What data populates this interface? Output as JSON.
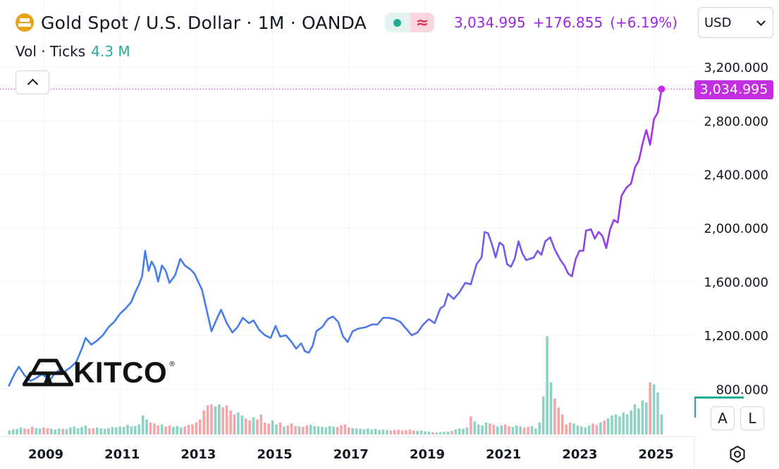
{
  "header": {
    "title": "Gold Spot / U.S. Dollar · 1M · OANDA",
    "quote_price": "3,034.995",
    "quote_change": "+176.855",
    "quote_change_pct": "(+6.19%)",
    "logo_icon": "gold-bars-icon",
    "status_icon": "market-open-dot-icon",
    "approx_symbol": "≈"
  },
  "volume": {
    "label": "Vol · Ticks",
    "value": "4.3 M"
  },
  "currency": {
    "label": "USD"
  },
  "price_tag": "3,034.995",
  "watermark": {
    "brand": "KITCO",
    "reg": "®"
  },
  "scale_buttons": {
    "auto": "A",
    "log": "L"
  },
  "colors": {
    "line_start": "#3d82e8",
    "line_end": "#a530e6",
    "vol_up": "#8fd1c4",
    "vol_down": "#f2a8aa",
    "last_price": "#c32ee0"
  },
  "chart_data": {
    "type": "line",
    "title": "Gold Spot / U.S. Dollar · 1M · OANDA",
    "x_ticks": [
      "2009",
      "2011",
      "2013",
      "2015",
      "2017",
      "2019",
      "2021",
      "2023",
      "2025"
    ],
    "y_ticks": [
      "800.000",
      "1,200.000",
      "1,600.000",
      "2,000.000",
      "2,400.000",
      "2,800.000",
      "3,200.000"
    ],
    "ylim": [
      560,
      3200
    ],
    "xlim": [
      2008.08,
      2025.7
    ],
    "last_value": 3034.995,
    "series": [
      {
        "values": [
          [
            2008.08,
            820
          ],
          [
            2008.25,
            920
          ],
          [
            2008.35,
            965
          ],
          [
            2008.5,
            900
          ],
          [
            2008.65,
            860
          ],
          [
            2008.8,
            880
          ],
          [
            2008.95,
            910
          ],
          [
            2009.05,
            890
          ],
          [
            2009.15,
            860
          ],
          [
            2009.25,
            900
          ],
          [
            2009.4,
            940
          ],
          [
            2009.55,
            930
          ],
          [
            2009.7,
            960
          ],
          [
            2009.85,
            1000
          ],
          [
            2010.0,
            1100
          ],
          [
            2010.1,
            1180
          ],
          [
            2010.25,
            1130
          ],
          [
            2010.4,
            1160
          ],
          [
            2010.55,
            1200
          ],
          [
            2010.7,
            1260
          ],
          [
            2010.85,
            1300
          ],
          [
            2011.0,
            1360
          ],
          [
            2011.15,
            1400
          ],
          [
            2011.3,
            1450
          ],
          [
            2011.4,
            1520
          ],
          [
            2011.5,
            1580
          ],
          [
            2011.58,
            1640
          ],
          [
            2011.66,
            1830
          ],
          [
            2011.75,
            1680
          ],
          [
            2011.83,
            1750
          ],
          [
            2011.92,
            1700
          ],
          [
            2012.0,
            1600
          ],
          [
            2012.1,
            1720
          ],
          [
            2012.2,
            1680
          ],
          [
            2012.3,
            1590
          ],
          [
            2012.45,
            1650
          ],
          [
            2012.58,
            1770
          ],
          [
            2012.7,
            1720
          ],
          [
            2012.85,
            1690
          ],
          [
            2012.95,
            1660
          ],
          [
            2013.05,
            1600
          ],
          [
            2013.15,
            1540
          ],
          [
            2013.28,
            1380
          ],
          [
            2013.4,
            1230
          ],
          [
            2013.55,
            1330
          ],
          [
            2013.65,
            1390
          ],
          [
            2013.8,
            1290
          ],
          [
            2013.95,
            1220
          ],
          [
            2014.08,
            1260
          ],
          [
            2014.22,
            1330
          ],
          [
            2014.38,
            1290
          ],
          [
            2014.5,
            1310
          ],
          [
            2014.65,
            1240
          ],
          [
            2014.8,
            1200
          ],
          [
            2014.95,
            1180
          ],
          [
            2015.08,
            1270
          ],
          [
            2015.2,
            1190
          ],
          [
            2015.35,
            1200
          ],
          [
            2015.5,
            1150
          ],
          [
            2015.62,
            1100
          ],
          [
            2015.75,
            1140
          ],
          [
            2015.85,
            1080
          ],
          [
            2015.95,
            1070
          ],
          [
            2016.05,
            1120
          ],
          [
            2016.15,
            1230
          ],
          [
            2016.3,
            1260
          ],
          [
            2016.45,
            1320
          ],
          [
            2016.58,
            1340
          ],
          [
            2016.72,
            1300
          ],
          [
            2016.85,
            1190
          ],
          [
            2016.97,
            1150
          ],
          [
            2017.1,
            1230
          ],
          [
            2017.25,
            1250
          ],
          [
            2017.45,
            1260
          ],
          [
            2017.6,
            1280
          ],
          [
            2017.75,
            1280
          ],
          [
            2017.9,
            1330
          ],
          [
            2018.05,
            1330
          ],
          [
            2018.2,
            1320
          ],
          [
            2018.35,
            1300
          ],
          [
            2018.5,
            1250
          ],
          [
            2018.65,
            1200
          ],
          [
            2018.8,
            1220
          ],
          [
            2018.95,
            1280
          ],
          [
            2019.1,
            1320
          ],
          [
            2019.25,
            1290
          ],
          [
            2019.4,
            1400
          ],
          [
            2019.5,
            1420
          ],
          [
            2019.6,
            1510
          ],
          [
            2019.75,
            1470
          ],
          [
            2019.9,
            1520
          ],
          [
            2020.05,
            1590
          ],
          [
            2020.2,
            1580
          ],
          [
            2020.35,
            1730
          ],
          [
            2020.48,
            1780
          ],
          [
            2020.56,
            1970
          ],
          [
            2020.65,
            1960
          ],
          [
            2020.75,
            1880
          ],
          [
            2020.85,
            1780
          ],
          [
            2020.95,
            1890
          ],
          [
            2021.05,
            1870
          ],
          [
            2021.15,
            1730
          ],
          [
            2021.25,
            1710
          ],
          [
            2021.35,
            1770
          ],
          [
            2021.45,
            1900
          ],
          [
            2021.55,
            1810
          ],
          [
            2021.65,
            1760
          ],
          [
            2021.75,
            1770
          ],
          [
            2021.85,
            1780
          ],
          [
            2021.95,
            1830
          ],
          [
            2022.05,
            1800
          ],
          [
            2022.15,
            1900
          ],
          [
            2022.28,
            1930
          ],
          [
            2022.4,
            1840
          ],
          [
            2022.55,
            1760
          ],
          [
            2022.65,
            1720
          ],
          [
            2022.75,
            1660
          ],
          [
            2022.85,
            1640
          ],
          [
            2022.95,
            1770
          ],
          [
            2023.05,
            1830
          ],
          [
            2023.15,
            1830
          ],
          [
            2023.22,
            1980
          ],
          [
            2023.35,
            1990
          ],
          [
            2023.45,
            1920
          ],
          [
            2023.55,
            1970
          ],
          [
            2023.65,
            1940
          ],
          [
            2023.75,
            1850
          ],
          [
            2023.85,
            1990
          ],
          [
            2023.95,
            2060
          ],
          [
            2024.05,
            2040
          ],
          [
            2024.15,
            2240
          ],
          [
            2024.28,
            2300
          ],
          [
            2024.4,
            2330
          ],
          [
            2024.5,
            2450
          ],
          [
            2024.6,
            2500
          ],
          [
            2024.72,
            2650
          ],
          [
            2024.8,
            2730
          ],
          [
            2024.9,
            2620
          ],
          [
            2025.0,
            2810
          ],
          [
            2025.1,
            2860
          ],
          [
            2025.2,
            3034.995
          ]
        ]
      }
    ],
    "volume": [
      [
        2008.1,
        20
      ],
      [
        2008.2,
        25
      ],
      [
        2008.3,
        28
      ],
      [
        2008.4,
        35
      ],
      [
        2008.5,
        30
      ],
      [
        2008.6,
        28
      ],
      [
        2008.7,
        40
      ],
      [
        2008.8,
        32
      ],
      [
        2008.9,
        30
      ],
      [
        2009.0,
        35
      ],
      [
        2009.1,
        32
      ],
      [
        2009.2,
        28
      ],
      [
        2009.3,
        25
      ],
      [
        2009.4,
        30
      ],
      [
        2009.5,
        28
      ],
      [
        2009.6,
        26
      ],
      [
        2009.7,
        35
      ],
      [
        2009.8,
        40
      ],
      [
        2009.9,
        30
      ],
      [
        2010.0,
        38
      ],
      [
        2010.1,
        45
      ],
      [
        2010.2,
        30
      ],
      [
        2010.3,
        32
      ],
      [
        2010.4,
        35
      ],
      [
        2010.5,
        30
      ],
      [
        2010.6,
        28
      ],
      [
        2010.7,
        32
      ],
      [
        2010.8,
        38
      ],
      [
        2010.9,
        35
      ],
      [
        2011.0,
        40
      ],
      [
        2011.1,
        38
      ],
      [
        2011.2,
        48
      ],
      [
        2011.3,
        40
      ],
      [
        2011.4,
        42
      ],
      [
        2011.5,
        50
      ],
      [
        2011.6,
        95
      ],
      [
        2011.7,
        75
      ],
      [
        2011.8,
        60
      ],
      [
        2011.9,
        55
      ],
      [
        2012.0,
        45
      ],
      [
        2012.1,
        50
      ],
      [
        2012.2,
        40
      ],
      [
        2012.3,
        45
      ],
      [
        2012.4,
        38
      ],
      [
        2012.5,
        42
      ],
      [
        2012.6,
        35
      ],
      [
        2012.7,
        40
      ],
      [
        2012.8,
        48
      ],
      [
        2012.9,
        50
      ],
      [
        2013.0,
        60
      ],
      [
        2013.1,
        75
      ],
      [
        2013.2,
        120
      ],
      [
        2013.3,
        145
      ],
      [
        2013.4,
        150
      ],
      [
        2013.5,
        140
      ],
      [
        2013.6,
        150
      ],
      [
        2013.7,
        135
      ],
      [
        2013.8,
        145
      ],
      [
        2013.9,
        120
      ],
      [
        2014.0,
        100
      ],
      [
        2014.1,
        110
      ],
      [
        2014.2,
        95
      ],
      [
        2014.3,
        80
      ],
      [
        2014.4,
        70
      ],
      [
        2014.5,
        85
      ],
      [
        2014.6,
        75
      ],
      [
        2014.7,
        100
      ],
      [
        2014.8,
        60
      ],
      [
        2014.9,
        55
      ],
      [
        2015.0,
        70
      ],
      [
        2015.1,
        50
      ],
      [
        2015.2,
        60
      ],
      [
        2015.3,
        40
      ],
      [
        2015.4,
        45
      ],
      [
        2015.5,
        55
      ],
      [
        2015.6,
        42
      ],
      [
        2015.7,
        40
      ],
      [
        2015.8,
        38
      ],
      [
        2015.9,
        45
      ],
      [
        2016.0,
        48
      ],
      [
        2016.1,
        42
      ],
      [
        2016.2,
        40
      ],
      [
        2016.3,
        38
      ],
      [
        2016.4,
        35
      ],
      [
        2016.5,
        42
      ],
      [
        2016.6,
        40
      ],
      [
        2016.7,
        38
      ],
      [
        2016.8,
        45
      ],
      [
        2016.9,
        50
      ],
      [
        2017.0,
        35
      ],
      [
        2017.1,
        32
      ],
      [
        2017.2,
        30
      ],
      [
        2017.3,
        28
      ],
      [
        2017.4,
        26
      ],
      [
        2017.5,
        30
      ],
      [
        2017.6,
        25
      ],
      [
        2017.7,
        28
      ],
      [
        2017.8,
        22
      ],
      [
        2017.9,
        24
      ],
      [
        2018.0,
        22
      ],
      [
        2018.1,
        20
      ],
      [
        2018.2,
        22
      ],
      [
        2018.3,
        24
      ],
      [
        2018.4,
        20
      ],
      [
        2018.5,
        22
      ],
      [
        2018.6,
        25
      ],
      [
        2018.7,
        20
      ],
      [
        2018.8,
        18
      ],
      [
        2018.9,
        20
      ],
      [
        2019.0,
        16
      ],
      [
        2019.1,
        14
      ],
      [
        2019.2,
        12
      ],
      [
        2019.3,
        10
      ],
      [
        2019.4,
        12
      ],
      [
        2019.5,
        14
      ],
      [
        2019.6,
        15
      ],
      [
        2019.7,
        18
      ],
      [
        2019.8,
        25
      ],
      [
        2019.9,
        30
      ],
      [
        2020.0,
        28
      ],
      [
        2020.1,
        35
      ],
      [
        2020.2,
        90
      ],
      [
        2020.3,
        65
      ],
      [
        2020.4,
        50
      ],
      [
        2020.5,
        45
      ],
      [
        2020.6,
        60
      ],
      [
        2020.7,
        55
      ],
      [
        2020.8,
        48
      ],
      [
        2020.9,
        40
      ],
      [
        2021.0,
        45
      ],
      [
        2021.1,
        50
      ],
      [
        2021.2,
        42
      ],
      [
        2021.3,
        38
      ],
      [
        2021.4,
        45
      ],
      [
        2021.5,
        40
      ],
      [
        2021.6,
        35
      ],
      [
        2021.7,
        38
      ],
      [
        2021.8,
        42
      ],
      [
        2021.9,
        30
      ],
      [
        2022.0,
        60
      ],
      [
        2022.1,
        190
      ],
      [
        2022.2,
        490
      ],
      [
        2022.3,
        260
      ],
      [
        2022.4,
        180
      ],
      [
        2022.5,
        135
      ],
      [
        2022.6,
        100
      ],
      [
        2022.7,
        50
      ],
      [
        2022.8,
        60
      ],
      [
        2022.9,
        55
      ],
      [
        2023.0,
        45
      ],
      [
        2023.1,
        40
      ],
      [
        2023.2,
        35
      ],
      [
        2023.3,
        45
      ],
      [
        2023.4,
        55
      ],
      [
        2023.5,
        48
      ],
      [
        2023.6,
        60
      ],
      [
        2023.7,
        70
      ],
      [
        2023.8,
        80
      ],
      [
        2023.9,
        95
      ],
      [
        2024.0,
        100
      ],
      [
        2024.1,
        90
      ],
      [
        2024.2,
        110
      ],
      [
        2024.3,
        100
      ],
      [
        2024.4,
        120
      ],
      [
        2024.5,
        150
      ],
      [
        2024.6,
        130
      ],
      [
        2024.7,
        170
      ],
      [
        2024.8,
        160
      ],
      [
        2024.9,
        260
      ],
      [
        2025.0,
        250
      ],
      [
        2025.1,
        210
      ],
      [
        2025.2,
        100
      ]
    ]
  }
}
